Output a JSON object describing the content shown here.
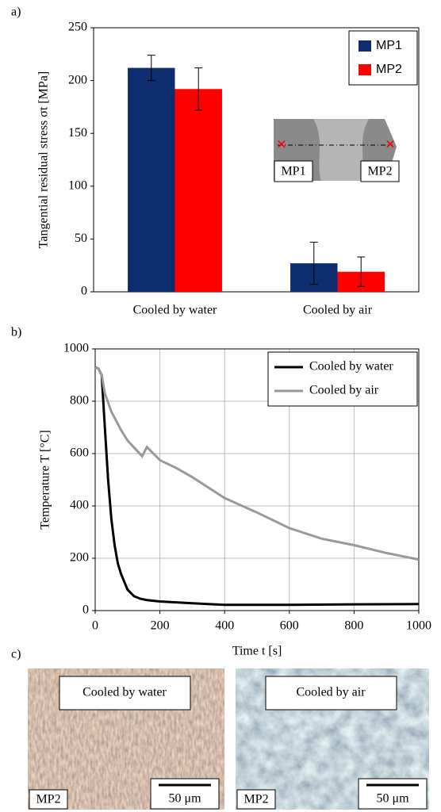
{
  "chart_data": [
    {
      "type": "bar",
      "label": "a)",
      "ylabel": "Tangential residual stress σt [MPa]",
      "categories": [
        "Cooled by water",
        "Cooled by air"
      ],
      "series": [
        {
          "name": "MP1",
          "color": "#0e2d6e",
          "values": [
            212,
            27
          ],
          "errors": [
            12,
            20
          ]
        },
        {
          "name": "MP2",
          "color": "#ff0000",
          "values": [
            192,
            19
          ],
          "errors": [
            20,
            14
          ]
        }
      ],
      "ylim": [
        0,
        250
      ],
      "yticks": [
        0,
        50,
        100,
        150,
        200,
        250
      ],
      "legend": "upper right",
      "grid": false,
      "inset_labels": [
        "MP1",
        "MP2"
      ]
    },
    {
      "type": "line",
      "label": "b)",
      "xlabel": "Time t [s]",
      "ylabel": "Temperature T [°C]",
      "series": [
        {
          "name": "Cooled by water",
          "color": "#000000",
          "x": [
            0,
            10,
            20,
            30,
            40,
            50,
            60,
            70,
            80,
            90,
            100,
            120,
            140,
            160,
            200,
            300,
            400,
            600,
            800,
            1000
          ],
          "values": [
            930,
            925,
            900,
            700,
            500,
            350,
            250,
            180,
            140,
            110,
            80,
            55,
            45,
            40,
            35,
            28,
            22,
            22,
            24,
            25
          ]
        },
        {
          "name": "Cooled by air",
          "color": "#999999",
          "x": [
            0,
            10,
            20,
            30,
            50,
            80,
            100,
            130,
            145,
            160,
            180,
            200,
            250,
            300,
            400,
            500,
            600,
            700,
            800,
            900,
            1000
          ],
          "values": [
            930,
            925,
            900,
            830,
            760,
            690,
            650,
            610,
            590,
            625,
            600,
            575,
            545,
            510,
            430,
            375,
            315,
            275,
            250,
            220,
            195
          ]
        }
      ],
      "xlim": [
        0,
        1000
      ],
      "xticks": [
        0,
        200,
        400,
        600,
        800,
        1000
      ],
      "ylim": [
        0,
        1000
      ],
      "yticks": [
        0,
        200,
        400,
        600,
        800,
        1000
      ],
      "legend": "upper right",
      "grid": true
    }
  ],
  "micrographs": {
    "label": "c)",
    "images": [
      {
        "title": "Cooled by water",
        "marker": "MP2",
        "scale": "50 μm"
      },
      {
        "title": "Cooled by air",
        "marker": "MP2",
        "scale": "50 μm"
      }
    ]
  }
}
